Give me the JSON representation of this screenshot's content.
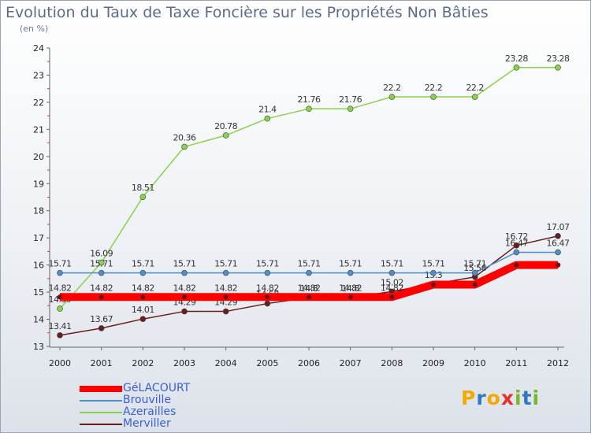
{
  "header": {
    "title": "Evolution du Taux de Taxe Foncière sur les Propriétés Non Bâties",
    "unit": "(en %)"
  },
  "logo": {
    "text": "Proxiti",
    "colors": [
      "#f2a900",
      "#2f78c4",
      "#f2a900",
      "#e4322b",
      "#7ab829",
      "#2f78c4",
      "#7ab829"
    ]
  },
  "chart_data": {
    "type": "line",
    "title": "Evolution du Taux de Taxe Foncière sur les Propriétés Non Bâties",
    "ylabel": "(en %)",
    "x": [
      "2000",
      "2001",
      "2002",
      "2003",
      "2004",
      "2005",
      "2006",
      "2007",
      "2008",
      "2009",
      "2010",
      "2011",
      "2012"
    ],
    "ylim": [
      13,
      24
    ],
    "yticks": [
      "13",
      "14",
      "15",
      "16",
      "17",
      "18",
      "19",
      "20",
      "21",
      "22",
      "23",
      "24"
    ],
    "grid": false,
    "legend_position": "bottom-left",
    "series": [
      {
        "name": "GéLACOURT",
        "color": "#ff0000",
        "values": [
          14.82,
          14.82,
          14.82,
          14.82,
          14.82,
          14.82,
          14.82,
          14.82,
          14.82,
          15.28,
          15.28,
          16.0,
          16.0
        ],
        "labels": [
          "14.82",
          "14.82",
          "14.82",
          "14.82",
          "14.82",
          "14.82",
          "14.82",
          "14.82",
          "14.82",
          "",
          "",
          "",
          ""
        ]
      },
      {
        "name": "Brouville",
        "color": "#4f8ec8",
        "values": [
          15.71,
          15.71,
          15.71,
          15.71,
          15.71,
          15.71,
          15.71,
          15.71,
          15.71,
          15.71,
          15.71,
          16.47,
          16.47
        ],
        "labels": [
          "15.71",
          "15.71",
          "15.71",
          "15.71",
          "15.71",
          "15.71",
          "15.71",
          "15.71",
          "15.71",
          "15.71",
          "15.71",
          "16.47",
          "16.47"
        ]
      },
      {
        "name": "Azerailles",
        "color": "#88d34a",
        "values": [
          14.39,
          16.09,
          18.51,
          20.36,
          20.78,
          21.4,
          21.76,
          21.76,
          22.2,
          22.2,
          22.2,
          23.28,
          23.28
        ],
        "labels": [
          "14.39",
          "16.09",
          "18.51",
          "20.36",
          "20.78",
          "21.4",
          "21.76",
          "21.76",
          "22.2",
          "22.2",
          "22.2",
          "23.28",
          "23.28"
        ]
      },
      {
        "name": "Merviller",
        "color": "#6b1c1c",
        "values": [
          13.41,
          13.67,
          14.01,
          14.29,
          14.29,
          14.58,
          14.8,
          14.8,
          15.02,
          15.3,
          15.56,
          16.72,
          17.07
        ],
        "labels": [
          "13.41",
          "13.67",
          "14.01",
          "14.29",
          "14.29",
          "14.58",
          "14.8",
          "14.8",
          "15.02",
          "15.3",
          "15.56",
          "16.72",
          "17.07"
        ]
      }
    ]
  }
}
